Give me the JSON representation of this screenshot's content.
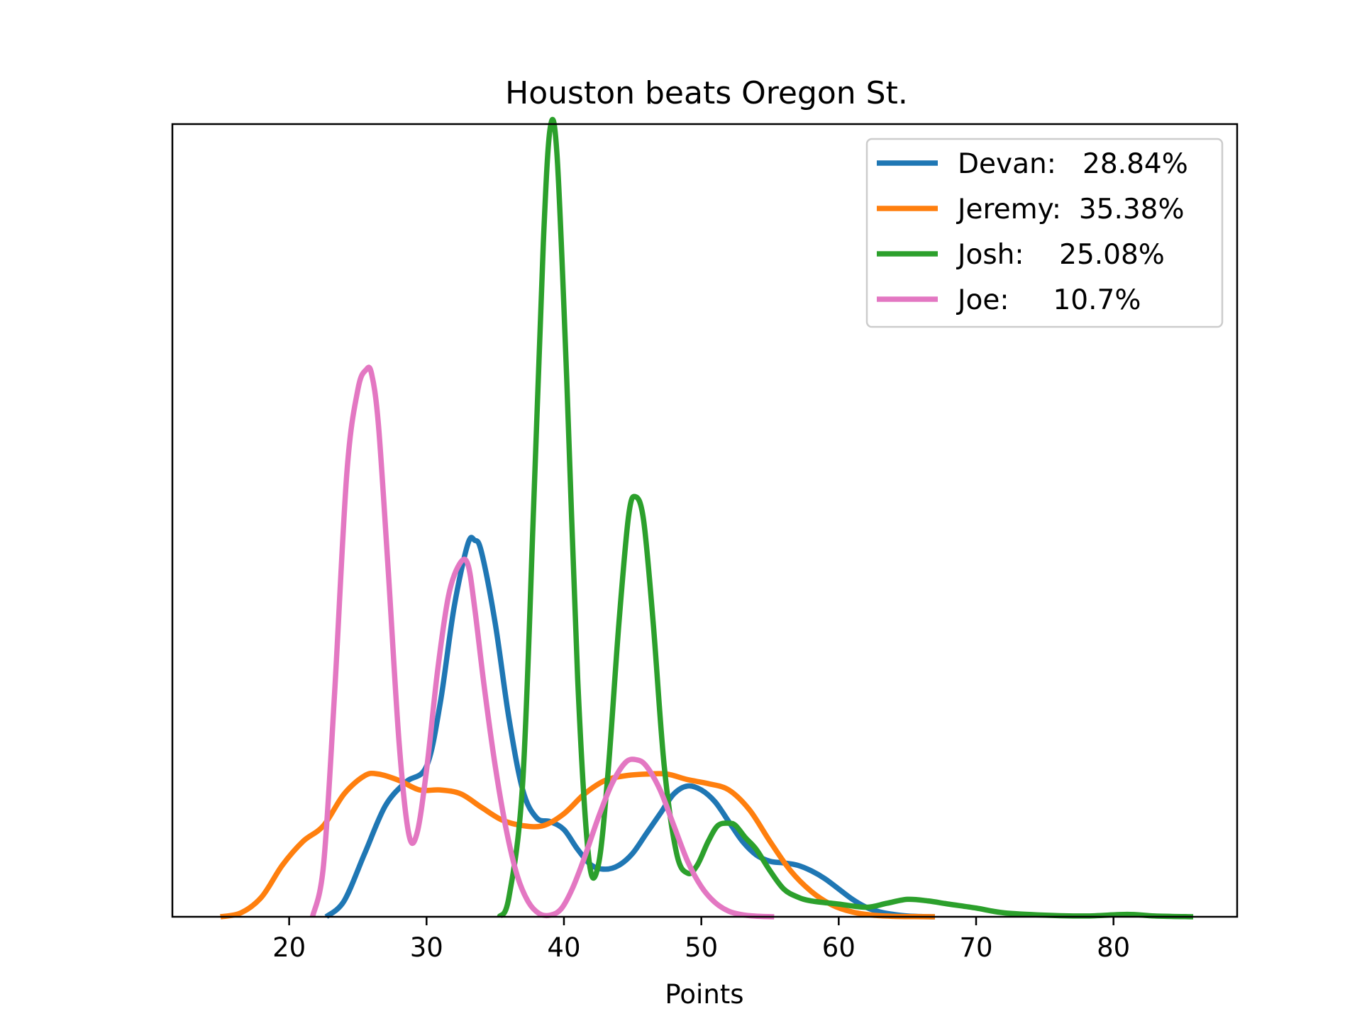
{
  "chart_data": {
    "type": "line",
    "title": "Houston beats Oregon St.",
    "xlabel": "Points",
    "ylabel": "",
    "xlim": [
      11.5,
      89
    ],
    "ylim": [
      0,
      0.1
    ],
    "x_ticks": [
      20,
      30,
      40,
      50,
      60,
      70,
      80
    ],
    "x_tick_labels": [
      "20",
      "30",
      "40",
      "50",
      "60",
      "70",
      "80"
    ],
    "y_ticks_visible": false,
    "grid": false,
    "legend_position": "top-right",
    "series": [
      {
        "name": "Devan:   28.84%",
        "color": "#1f77b4",
        "x": [
          22.7,
          24,
          25.5,
          27,
          28.5,
          30,
          31,
          32,
          33,
          33.5,
          34,
          35,
          36,
          37,
          38,
          39,
          40,
          41,
          42,
          43,
          44,
          45,
          46,
          47,
          48,
          49,
          50,
          51,
          52,
          53,
          54,
          55,
          56,
          57,
          58,
          59,
          60,
          61,
          62,
          63,
          64,
          65,
          66,
          67
        ],
        "y": [
          0.0,
          0.002,
          0.008,
          0.014,
          0.017,
          0.019,
          0.027,
          0.039,
          0.047,
          0.0475,
          0.046,
          0.037,
          0.025,
          0.016,
          0.0125,
          0.012,
          0.011,
          0.0085,
          0.0065,
          0.006,
          0.0065,
          0.008,
          0.0105,
          0.013,
          0.0155,
          0.0165,
          0.016,
          0.0145,
          0.012,
          0.0095,
          0.0078,
          0.007,
          0.0068,
          0.0065,
          0.0058,
          0.0048,
          0.0035,
          0.0022,
          0.0012,
          0.0006,
          0.0003,
          0.0001,
          3e-05,
          0.0
        ]
      },
      {
        "name": "Jeremy:  35.38%",
        "color": "#ff7f0e",
        "x": [
          15,
          16.5,
          18,
          19.5,
          21,
          22.5,
          24,
          25.5,
          26.5,
          28,
          29.5,
          31,
          32.5,
          34,
          35.5,
          37,
          38.5,
          40,
          41.5,
          43,
          44.5,
          46,
          47.5,
          49,
          50.5,
          52,
          53.5,
          55,
          56.5,
          58,
          59.5,
          61,
          62.5,
          64,
          65.5,
          67
        ],
        "y": [
          0.0,
          0.0005,
          0.0025,
          0.0065,
          0.0095,
          0.0115,
          0.0155,
          0.0178,
          0.018,
          0.0172,
          0.016,
          0.016,
          0.0155,
          0.0138,
          0.0122,
          0.0115,
          0.0115,
          0.013,
          0.0155,
          0.0172,
          0.0178,
          0.018,
          0.018,
          0.0173,
          0.0168,
          0.016,
          0.0135,
          0.0095,
          0.0058,
          0.0032,
          0.0015,
          0.0006,
          0.0002,
          6e-05,
          2e-05,
          0.0
        ]
      },
      {
        "name": "Josh:    25.08%",
        "color": "#2ca02c",
        "x": [
          35.3,
          36,
          37,
          37.8,
          38.5,
          39,
          39.5,
          40.2,
          41,
          41.8,
          42.5,
          43.2,
          44,
          44.7,
          45.2,
          45.8,
          46.5,
          47.3,
          48.2,
          49,
          49.7,
          50.5,
          51.2,
          52,
          52.5,
          53.2,
          54,
          55,
          56,
          57,
          58,
          60,
          62,
          63.5,
          65,
          66.5,
          68,
          70,
          72,
          75,
          78,
          81,
          83,
          85.8
        ],
        "y": [
          0.0,
          0.0025,
          0.017,
          0.052,
          0.085,
          0.0995,
          0.096,
          0.068,
          0.03,
          0.0075,
          0.0065,
          0.018,
          0.037,
          0.0505,
          0.053,
          0.05,
          0.037,
          0.019,
          0.008,
          0.0055,
          0.0065,
          0.0095,
          0.0115,
          0.0118,
          0.0115,
          0.01,
          0.0085,
          0.0058,
          0.0035,
          0.0025,
          0.002,
          0.0016,
          0.0012,
          0.0017,
          0.0022,
          0.002,
          0.0016,
          0.0011,
          0.0005,
          0.0002,
          0.0001,
          0.0003,
          0.0001,
          0.0
        ]
      },
      {
        "name": "Joe:     10.7%",
        "color": "#e377c2",
        "x": [
          21.7,
          22.5,
          23.3,
          24.2,
          25,
          25.6,
          26,
          26.5,
          27.2,
          28,
          28.7,
          29.3,
          30,
          30.8,
          31.6,
          32.4,
          33,
          33.5,
          34.2,
          35,
          35.8,
          36.6,
          37.4,
          38.2,
          39,
          39.8,
          40.6,
          41.5,
          42.5,
          43.5,
          44.5,
          45.3,
          46,
          47,
          48,
          49,
          50,
          51,
          52,
          53,
          54,
          55.3
        ],
        "y": [
          0.0,
          0.0065,
          0.028,
          0.056,
          0.0665,
          0.069,
          0.0685,
          0.062,
          0.044,
          0.022,
          0.0105,
          0.0105,
          0.0185,
          0.031,
          0.0405,
          0.0445,
          0.0445,
          0.039,
          0.029,
          0.019,
          0.011,
          0.0052,
          0.0019,
          0.0004,
          0.0002,
          0.001,
          0.0035,
          0.0075,
          0.0125,
          0.0168,
          0.0195,
          0.0198,
          0.019,
          0.016,
          0.0115,
          0.007,
          0.0038,
          0.0018,
          0.0007,
          0.00025,
          8e-05,
          0.0
        ]
      }
    ]
  }
}
